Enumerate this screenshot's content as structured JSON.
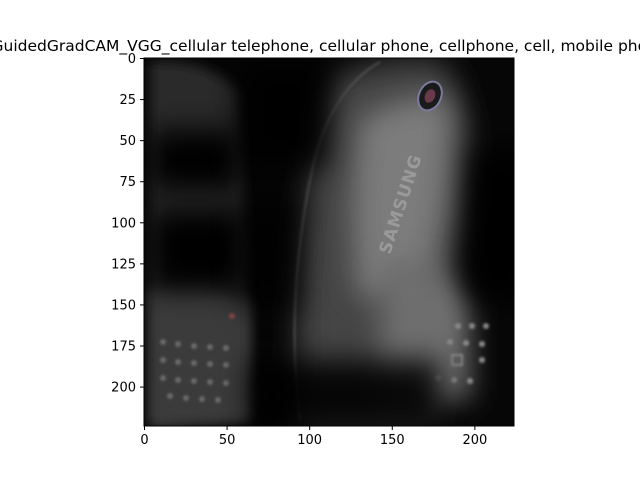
{
  "figure": {
    "title": "GuidedGradCAM_VGG_cellular telephone, cellular phone, cellphone, cell, mobile phone"
  },
  "axes": {
    "x_ticks": [
      {
        "value": 0,
        "label": "0"
      },
      {
        "value": 50,
        "label": "50"
      },
      {
        "value": 100,
        "label": "100"
      },
      {
        "value": 150,
        "label": "150"
      },
      {
        "value": 200,
        "label": "200"
      }
    ],
    "y_ticks": [
      {
        "value": 0,
        "label": "0"
      },
      {
        "value": 25,
        "label": "25"
      },
      {
        "value": 50,
        "label": "50"
      },
      {
        "value": 75,
        "label": "75"
      },
      {
        "value": 100,
        "label": "100"
      },
      {
        "value": 125,
        "label": "125"
      },
      {
        "value": 150,
        "label": "150"
      },
      {
        "value": 175,
        "label": "175"
      },
      {
        "value": 200,
        "label": "200"
      }
    ],
    "xlim": [
      0,
      224
    ],
    "ylim": [
      224,
      0
    ]
  },
  "image": {
    "subject": "two cellular phones under a guided Grad-CAM saliency overlay",
    "brand_text": "SAMSUNG",
    "background_color": "#050505",
    "phone_color": "#4a4a4a",
    "highlight_color": "#8c8c8c"
  }
}
